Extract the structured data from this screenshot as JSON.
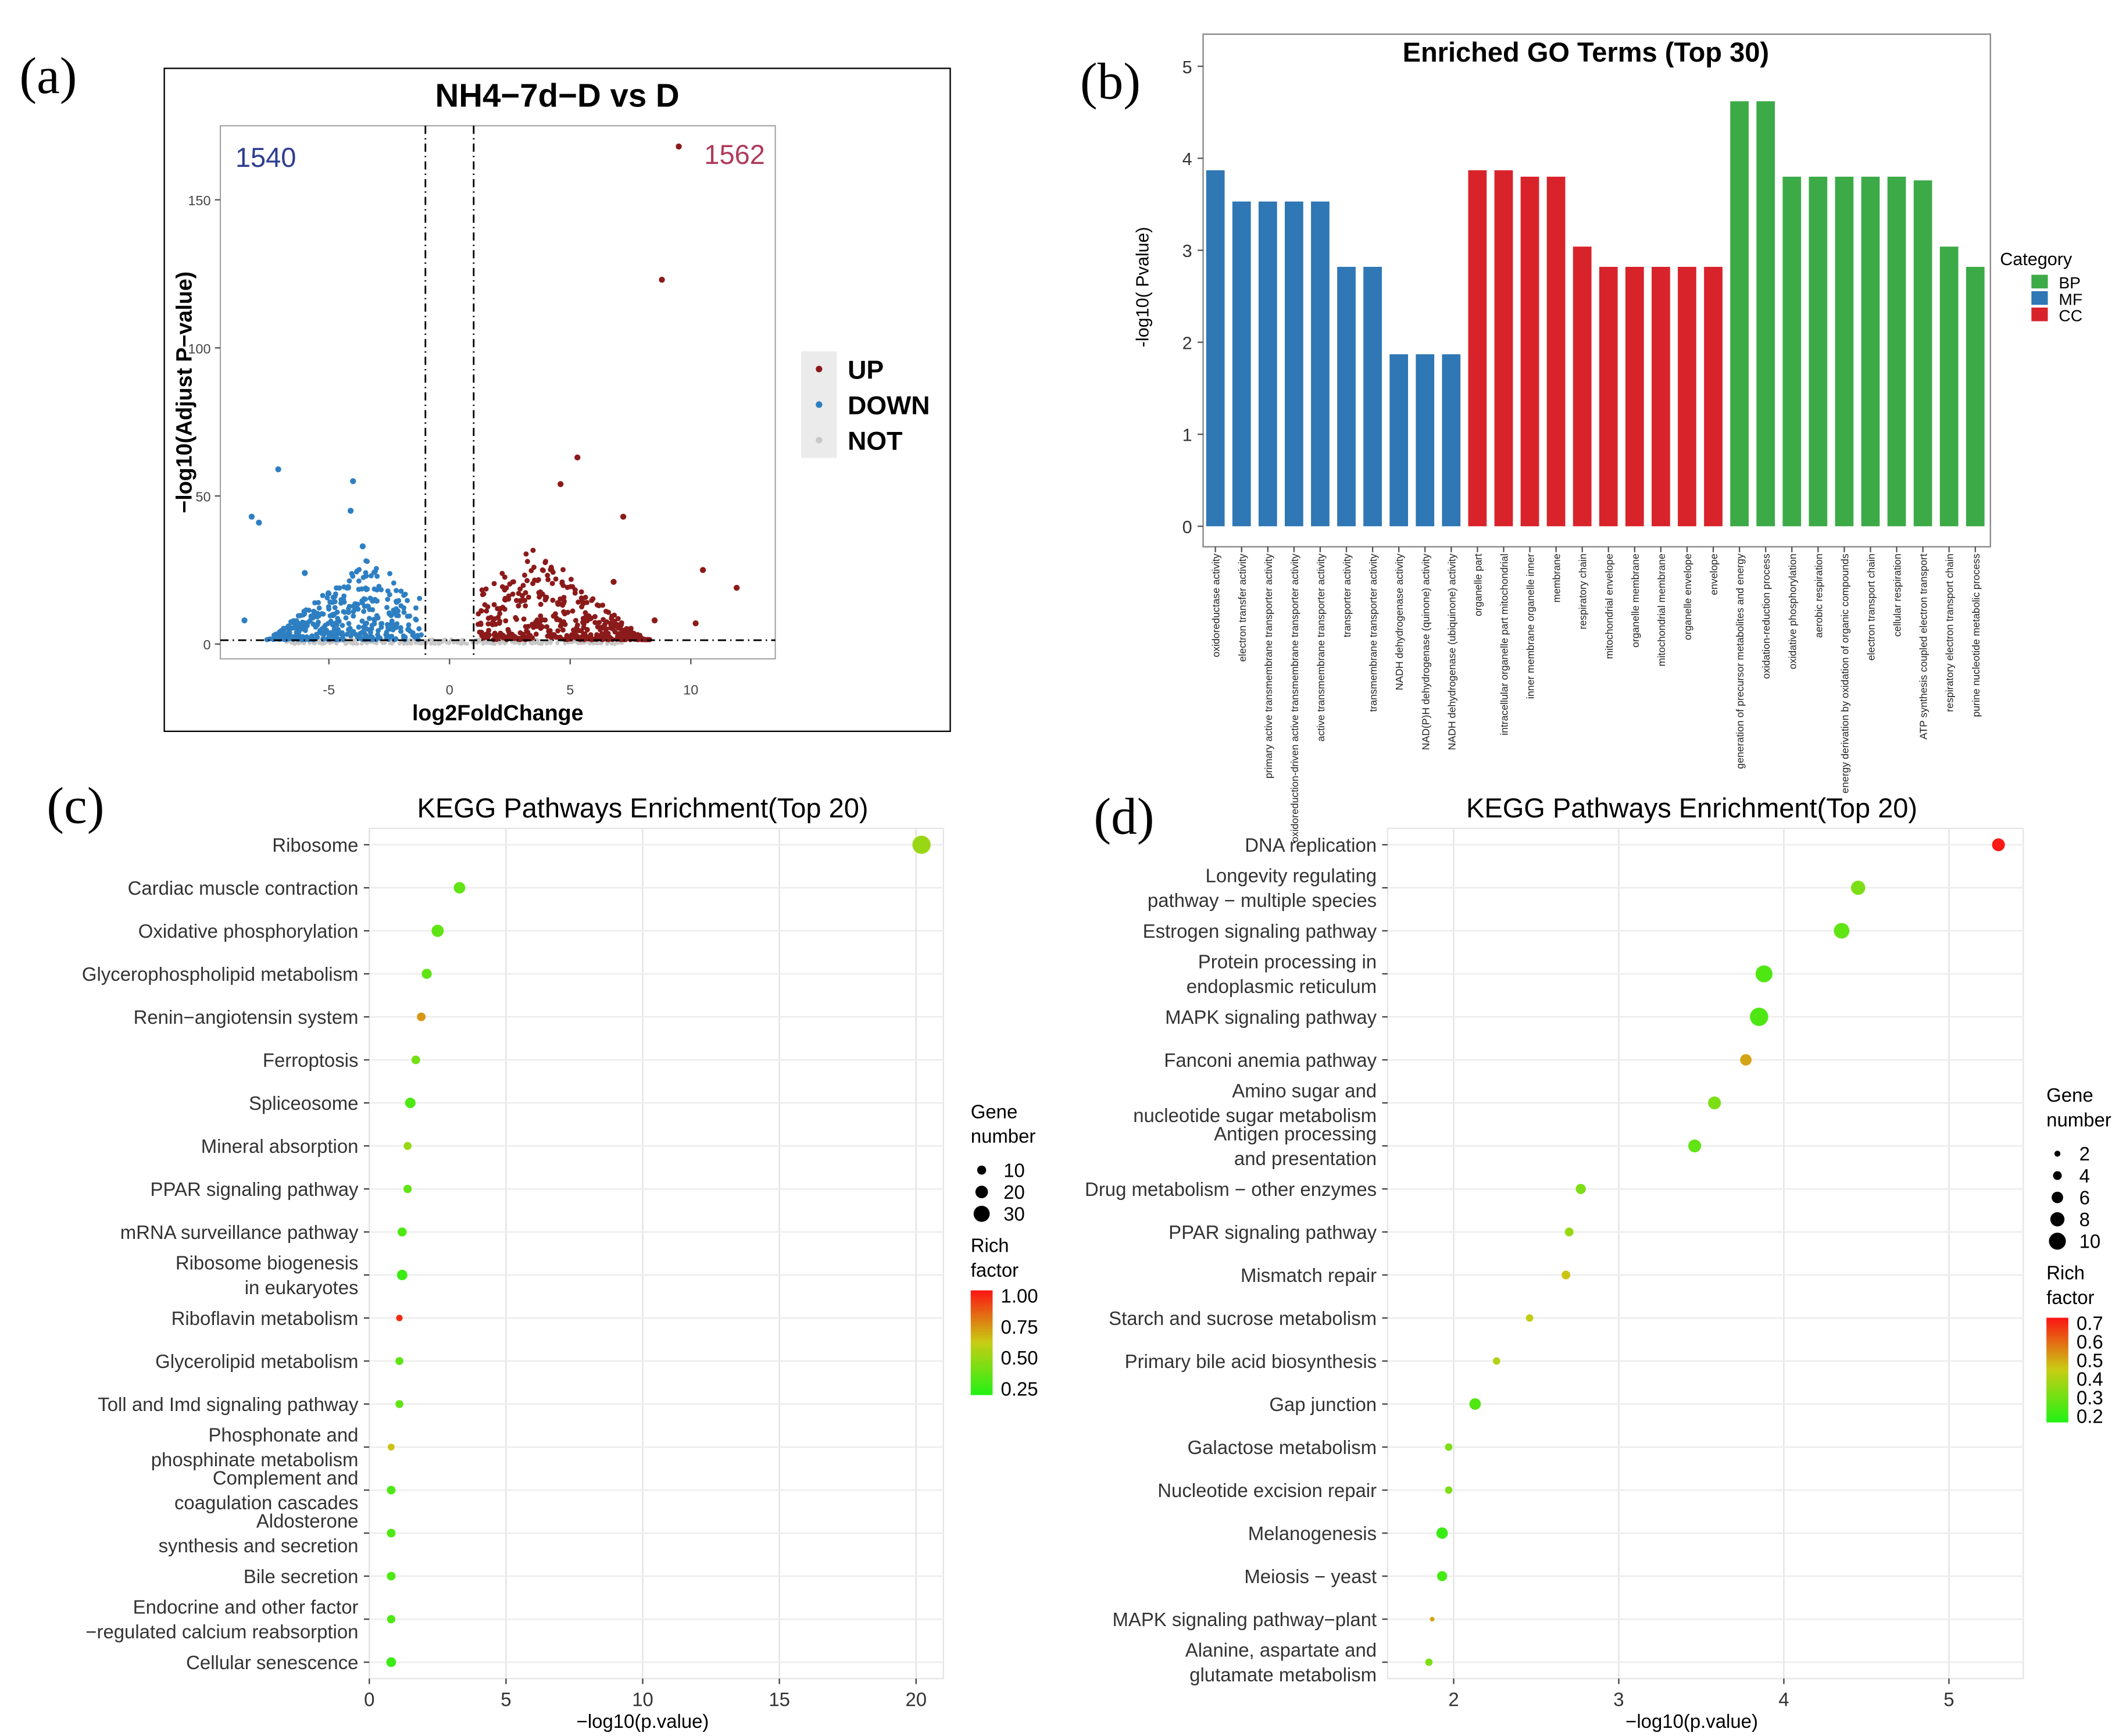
{
  "chart_data": [
    {
      "panel": "(a)",
      "type": "scatter",
      "title": "NH4−7d−D vs D",
      "xlabel": "log2FoldChange",
      "ylabel": "−log10(Adjust P−value)",
      "xlim": [
        -9.5,
        13.5
      ],
      "ylim": [
        -5,
        175
      ],
      "xticks": [
        -5,
        0,
        5,
        10
      ],
      "yticks": [
        0,
        50,
        100,
        150
      ],
      "fc_thresholds": [
        -1,
        1
      ],
      "p_threshold": 1.3,
      "count_down": "1540",
      "count_up": "1562",
      "legend": [
        "UP",
        "DOWN",
        "NOT"
      ],
      "colors": {
        "UP": "#8b1a1a",
        "DOWN": "#2e7fc2",
        "NOT": "#c8c8c8",
        "down_count": "#2e3d8f",
        "up_count": "#b03a5b"
      },
      "highlight_points": {
        "up": [
          [
            9.5,
            168
          ],
          [
            8.8,
            123
          ],
          [
            10.5,
            25
          ],
          [
            11.9,
            19
          ],
          [
            5.3,
            63
          ],
          [
            7.2,
            43
          ],
          [
            6.8,
            21
          ],
          [
            8.5,
            8
          ],
          [
            10.2,
            7
          ],
          [
            4.6,
            54
          ]
        ],
        "down": [
          [
            -7.1,
            59
          ],
          [
            -4.0,
            55
          ],
          [
            -8.2,
            43
          ],
          [
            -7.9,
            41
          ],
          [
            -4.1,
            45
          ],
          [
            -8.5,
            8
          ],
          [
            -6.0,
            24
          ],
          [
            -3.6,
            33
          ]
        ]
      }
    },
    {
      "panel": "(b)",
      "type": "bar",
      "title": "Enriched GO Terms (Top 30)",
      "ylabel": "-log10( Pvalue)",
      "ylim": [
        0,
        5.2
      ],
      "yticks": [
        0,
        1,
        2,
        3,
        4,
        5
      ],
      "legend_title": "Category",
      "legend": [
        "BP",
        "MF",
        "CC"
      ],
      "colors": {
        "BP": "#3daa48",
        "MF": "#2f77b5",
        "CC": "#d9232b"
      },
      "categories": [
        "oxidoreductase activity",
        "electron transfer activity",
        "primary active transmembrane transporter activity",
        "oxidoreduction-driven active transmembrane transporter activity",
        "active transmembrane transporter activity",
        "transporter activity",
        "transmembrane transporter activity",
        "NADH dehydrogenase activity",
        "NAD(P)H dehydrogenase (quinone) activity",
        "NADH dehydrogenase (ubiquinone) activity",
        "organelle part",
        "intracellular organelle part mitochondrial",
        "inner membrane organelle inner",
        "membrane",
        "respiratory chain",
        "mitochondrial envelope",
        "organelle membrane",
        "mitochondrial membrane",
        "organelle envelope",
        "envelope",
        "generation of precursor metabolites and energy",
        "oxidation-reduction process",
        "oxidative phosphorylation",
        "aerobic respiration",
        "energy derivation by oxidation of organic compounds",
        "electron transport chain",
        "cellular respiration",
        "ATP synthesis coupled electron transport",
        "respiratory electron transport chain",
        "purine nucleotide metabolic process"
      ],
      "groups": [
        "MF",
        "MF",
        "MF",
        "MF",
        "MF",
        "MF",
        "MF",
        "MF",
        "MF",
        "MF",
        "CC",
        "CC",
        "CC",
        "CC",
        "CC",
        "CC",
        "CC",
        "CC",
        "CC",
        "CC",
        "BP",
        "BP",
        "BP",
        "BP",
        "BP",
        "BP",
        "BP",
        "BP",
        "BP",
        "BP"
      ],
      "values": [
        3.87,
        3.53,
        3.53,
        3.53,
        3.53,
        2.82,
        2.82,
        1.87,
        1.87,
        1.87,
        3.87,
        3.87,
        3.8,
        3.8,
        3.04,
        2.82,
        2.82,
        2.82,
        2.82,
        2.82,
        4.62,
        4.62,
        3.8,
        3.8,
        3.8,
        3.8,
        3.8,
        3.76,
        3.04,
        2.82
      ]
    },
    {
      "panel": "(c)",
      "type": "scatter",
      "title": "KEGG Pathways Enrichment(Top 20)",
      "xlabel": "−log10(p.value)",
      "xlim": [
        0,
        21
      ],
      "xticks": [
        0,
        5,
        10,
        15,
        20
      ],
      "size_legend_title": [
        "Gene",
        "number"
      ],
      "size_legend": [
        "10",
        "20",
        "30"
      ],
      "color_legend_title": [
        "Rich",
        "factor"
      ],
      "color_legend": [
        "1.00",
        "0.75",
        "0.50",
        "0.25"
      ],
      "color_range": [
        0.15,
        1.0
      ],
      "categories": [
        "Ribosome",
        "Cardiac muscle contraction",
        "Oxidative phosphorylation",
        "Glycerophospholipid metabolism",
        "Renin−angiotensin system",
        "Ferroptosis",
        "Spliceosome",
        "Mineral absorption",
        "PPAR signaling pathway",
        "mRNA surveillance pathway",
        "Ribosome biogenesis in eukaryotes",
        "Riboflavin metabolism",
        "Glycerolipid metabolism",
        "Toll and Imd signaling pathway",
        "Phosphonate and phosphinate metabolism",
        "Complement and coagulation cascades",
        "Aldosterone synthesis and secretion",
        "Bile secretion",
        "Endocrine and other factor −regulated calcium reabsorption",
        "Cellular senescence"
      ],
      "x": [
        20.2,
        3.3,
        2.5,
        2.1,
        1.9,
        1.7,
        1.5,
        1.4,
        1.4,
        1.2,
        1.2,
        1.1,
        1.1,
        1.1,
        0.8,
        0.8,
        0.8,
        0.8,
        0.8,
        0.8
      ],
      "gene_number": [
        36,
        17,
        19,
        13,
        9,
        9,
        14,
        7,
        8,
        10,
        14,
        3,
        7,
        7,
        4,
        9,
        9,
        9,
        8,
        12
      ],
      "rich_factor": [
        0.45,
        0.3,
        0.3,
        0.3,
        0.7,
        0.35,
        0.25,
        0.45,
        0.3,
        0.25,
        0.2,
        0.95,
        0.3,
        0.3,
        0.6,
        0.25,
        0.25,
        0.25,
        0.25,
        0.2
      ]
    },
    {
      "panel": "(d)",
      "type": "scatter",
      "title": "KEGG Pathways Enrichment(Top 20)",
      "xlabel": "−log10(p.value)",
      "xlim": [
        1.6,
        5.45
      ],
      "xticks": [
        2,
        3,
        4,
        5
      ],
      "size_legend_title": [
        "Gene",
        "number"
      ],
      "size_legend": [
        "2",
        "4",
        "6",
        "8",
        "10"
      ],
      "color_legend_title": [
        "Rich",
        "factor"
      ],
      "color_legend": [
        "0.7",
        "0.6",
        "0.5",
        "0.4",
        "0.3",
        "0.2"
      ],
      "color_range": [
        0.15,
        0.72
      ],
      "categories": [
        "DNA replication",
        "Longevity regulating pathway − multiple species",
        "Estrogen signaling pathway",
        "Protein processing in endoplasmic reticulum",
        "MAPK signaling pathway",
        "Fanconi anemia pathway",
        "Amino sugar and nucleotide sugar metabolism",
        "Antigen processing and presentation",
        "Drug metabolism − other enzymes",
        "PPAR signaling pathway",
        "Mismatch repair",
        "Starch and sucrose metabolism",
        "Primary bile acid biosynthesis",
        "Gap junction",
        "Galactose metabolism",
        "Nucleotide excision repair",
        "Melanogenesis",
        "Meiosis − yeast",
        "MAPK signaling pathway−plant",
        "Alanine, aspartate and glutamate metabolism"
      ],
      "x": [
        5.3,
        4.45,
        4.35,
        3.88,
        3.85,
        3.77,
        3.58,
        3.46,
        2.77,
        2.7,
        2.68,
        2.46,
        2.26,
        2.13,
        1.97,
        1.97,
        1.93,
        1.93,
        1.87,
        1.85
      ],
      "gene_number": [
        7,
        8,
        9,
        10,
        11,
        6,
        7,
        7,
        5,
        4,
        4,
        3,
        3,
        6,
        3,
        3,
        6,
        5,
        1,
        3
      ],
      "rich_factor": [
        0.72,
        0.3,
        0.25,
        0.22,
        0.22,
        0.5,
        0.3,
        0.25,
        0.3,
        0.35,
        0.45,
        0.42,
        0.4,
        0.22,
        0.3,
        0.3,
        0.18,
        0.2,
        0.5,
        0.3
      ]
    }
  ],
  "panel_labels": [
    "(a)",
    "(b)",
    "(c)",
    "(d)"
  ]
}
